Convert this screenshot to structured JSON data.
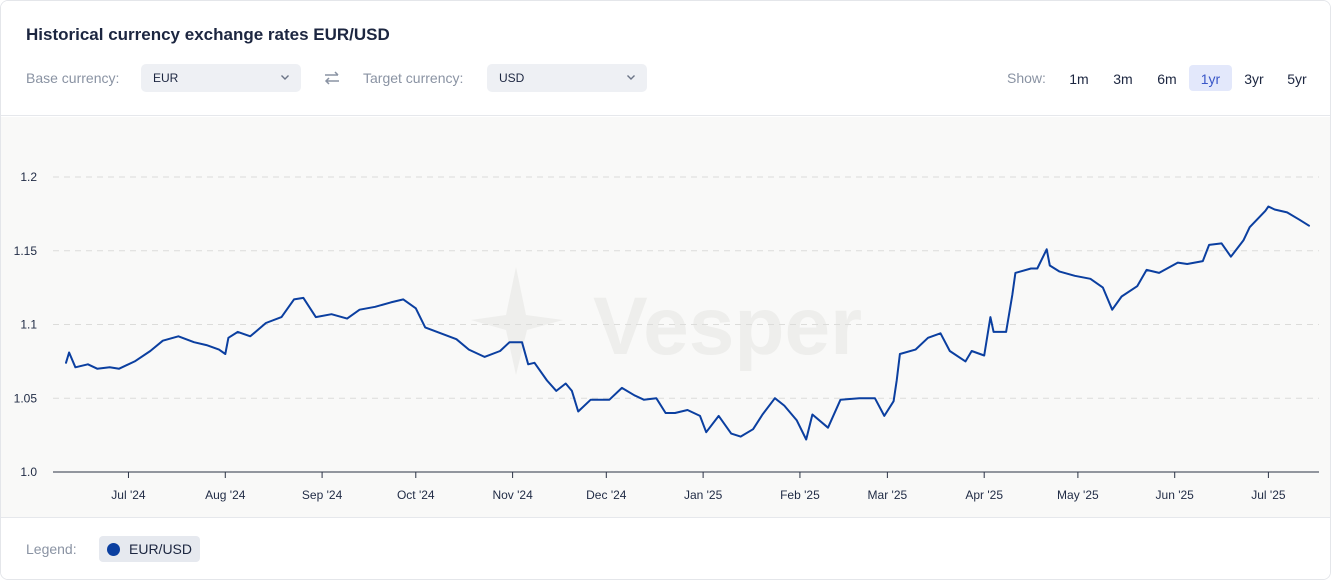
{
  "header": {
    "title": "Historical currency exchange rates EUR/USD",
    "base_label": "Base currency:",
    "base_value": "EUR",
    "target_label": "Target currency:",
    "target_value": "USD",
    "show_label": "Show:",
    "ranges": [
      "1m",
      "3m",
      "6m",
      "1yr",
      "3yr",
      "5yr"
    ],
    "active_range": "1yr"
  },
  "watermark": "Vesper",
  "legend": {
    "label": "Legend:",
    "items": [
      {
        "name": "EUR/USD",
        "color": "#0b3fa0"
      }
    ]
  },
  "chart_data": {
    "type": "line",
    "title": "Historical currency exchange rates EUR/USD",
    "xlabel": "",
    "ylabel": "",
    "xlim": [
      "2024-06-11",
      "2025-07-14"
    ],
    "ylim": [
      1.0,
      1.23
    ],
    "yticks": [
      1.0,
      1.05,
      1.1,
      1.15,
      1.2
    ],
    "ytick_labels": [
      "1.0",
      "1.05",
      "1.1",
      "1.15",
      "1.2"
    ],
    "xticks": [
      "2024-07-01",
      "2024-08-01",
      "2024-09-01",
      "2024-10-01",
      "2024-11-01",
      "2024-12-01",
      "2025-01-01",
      "2025-02-01",
      "2025-03-01",
      "2025-04-01",
      "2025-05-01",
      "2025-06-01",
      "2025-07-01"
    ],
    "xtick_labels": [
      "Jul '24",
      "Aug '24",
      "Sep '24",
      "Oct '24",
      "Nov '24",
      "Dec '24",
      "Jan '25",
      "Feb '25",
      "Mar '25",
      "Apr '25",
      "May '25",
      "Jun '25",
      "Jul '25"
    ],
    "grid": "horizontal-dashed",
    "legend": "bottom-left",
    "series": [
      {
        "name": "EUR/USD",
        "color": "#0b3fa0",
        "points": [
          [
            "2024-06-11",
            1.074
          ],
          [
            "2024-06-12",
            1.081
          ],
          [
            "2024-06-14",
            1.071
          ],
          [
            "2024-06-18",
            1.073
          ],
          [
            "2024-06-21",
            1.07
          ],
          [
            "2024-06-25",
            1.071
          ],
          [
            "2024-06-28",
            1.07
          ],
          [
            "2024-07-03",
            1.075
          ],
          [
            "2024-07-08",
            1.082
          ],
          [
            "2024-07-12",
            1.089
          ],
          [
            "2024-07-17",
            1.092
          ],
          [
            "2024-07-22",
            1.088
          ],
          [
            "2024-07-26",
            1.086
          ],
          [
            "2024-07-30",
            1.083
          ],
          [
            "2024-08-01",
            1.08
          ],
          [
            "2024-08-02",
            1.091
          ],
          [
            "2024-08-05",
            1.095
          ],
          [
            "2024-08-09",
            1.092
          ],
          [
            "2024-08-14",
            1.101
          ],
          [
            "2024-08-19",
            1.105
          ],
          [
            "2024-08-23",
            1.117
          ],
          [
            "2024-08-26",
            1.118
          ],
          [
            "2024-08-30",
            1.105
          ],
          [
            "2024-09-04",
            1.107
          ],
          [
            "2024-09-09",
            1.104
          ],
          [
            "2024-09-13",
            1.11
          ],
          [
            "2024-09-18",
            1.112
          ],
          [
            "2024-09-23",
            1.115
          ],
          [
            "2024-09-27",
            1.117
          ],
          [
            "2024-10-01",
            1.111
          ],
          [
            "2024-10-04",
            1.098
          ],
          [
            "2024-10-09",
            1.094
          ],
          [
            "2024-10-14",
            1.09
          ],
          [
            "2024-10-18",
            1.083
          ],
          [
            "2024-10-23",
            1.078
          ],
          [
            "2024-10-28",
            1.082
          ],
          [
            "2024-10-31",
            1.088
          ],
          [
            "2024-11-04",
            1.088
          ],
          [
            "2024-11-06",
            1.073
          ],
          [
            "2024-11-08",
            1.074
          ],
          [
            "2024-11-12",
            1.062
          ],
          [
            "2024-11-15",
            1.055
          ],
          [
            "2024-11-18",
            1.06
          ],
          [
            "2024-11-20",
            1.055
          ],
          [
            "2024-11-22",
            1.041
          ],
          [
            "2024-11-26",
            1.049
          ],
          [
            "2024-12-02",
            1.049
          ],
          [
            "2024-12-06",
            1.057
          ],
          [
            "2024-12-10",
            1.052
          ],
          [
            "2024-12-13",
            1.049
          ],
          [
            "2024-12-17",
            1.05
          ],
          [
            "2024-12-20",
            1.04
          ],
          [
            "2024-12-23",
            1.04
          ],
          [
            "2024-12-27",
            1.042
          ],
          [
            "2024-12-31",
            1.038
          ],
          [
            "2025-01-02",
            1.027
          ],
          [
            "2025-01-06",
            1.038
          ],
          [
            "2025-01-10",
            1.026
          ],
          [
            "2025-01-13",
            1.024
          ],
          [
            "2025-01-17",
            1.029
          ],
          [
            "2025-01-20",
            1.039
          ],
          [
            "2025-01-24",
            1.05
          ],
          [
            "2025-01-27",
            1.045
          ],
          [
            "2025-01-31",
            1.035
          ],
          [
            "2025-02-03",
            1.022
          ],
          [
            "2025-02-05",
            1.039
          ],
          [
            "2025-02-10",
            1.03
          ],
          [
            "2025-02-14",
            1.049
          ],
          [
            "2025-02-20",
            1.05
          ],
          [
            "2025-02-25",
            1.05
          ],
          [
            "2025-02-28",
            1.038
          ],
          [
            "2025-03-03",
            1.048
          ],
          [
            "2025-03-04",
            1.062
          ],
          [
            "2025-03-05",
            1.08
          ],
          [
            "2025-03-10",
            1.083
          ],
          [
            "2025-03-14",
            1.091
          ],
          [
            "2025-03-18",
            1.094
          ],
          [
            "2025-03-21",
            1.082
          ],
          [
            "2025-03-26",
            1.075
          ],
          [
            "2025-03-28",
            1.082
          ],
          [
            "2025-04-01",
            1.079
          ],
          [
            "2025-04-03",
            1.105
          ],
          [
            "2025-04-04",
            1.095
          ],
          [
            "2025-04-08",
            1.095
          ],
          [
            "2025-04-10",
            1.12
          ],
          [
            "2025-04-11",
            1.135
          ],
          [
            "2025-04-16",
            1.138
          ],
          [
            "2025-04-18",
            1.138
          ],
          [
            "2025-04-21",
            1.151
          ],
          [
            "2025-04-22",
            1.14
          ],
          [
            "2025-04-25",
            1.136
          ],
          [
            "2025-04-30",
            1.133
          ],
          [
            "2025-05-05",
            1.131
          ],
          [
            "2025-05-09",
            1.125
          ],
          [
            "2025-05-12",
            1.11
          ],
          [
            "2025-05-15",
            1.119
          ],
          [
            "2025-05-20",
            1.126
          ],
          [
            "2025-05-23",
            1.137
          ],
          [
            "2025-05-27",
            1.135
          ],
          [
            "2025-06-02",
            1.142
          ],
          [
            "2025-06-05",
            1.141
          ],
          [
            "2025-06-10",
            1.143
          ],
          [
            "2025-06-12",
            1.154
          ],
          [
            "2025-06-16",
            1.155
          ],
          [
            "2025-06-19",
            1.146
          ],
          [
            "2025-06-23",
            1.157
          ],
          [
            "2025-06-25",
            1.166
          ],
          [
            "2025-06-30",
            1.177
          ],
          [
            "2025-07-01",
            1.18
          ],
          [
            "2025-07-03",
            1.178
          ],
          [
            "2025-07-07",
            1.176
          ],
          [
            "2025-07-11",
            1.171
          ],
          [
            "2025-07-14",
            1.167
          ]
        ]
      }
    ]
  }
}
